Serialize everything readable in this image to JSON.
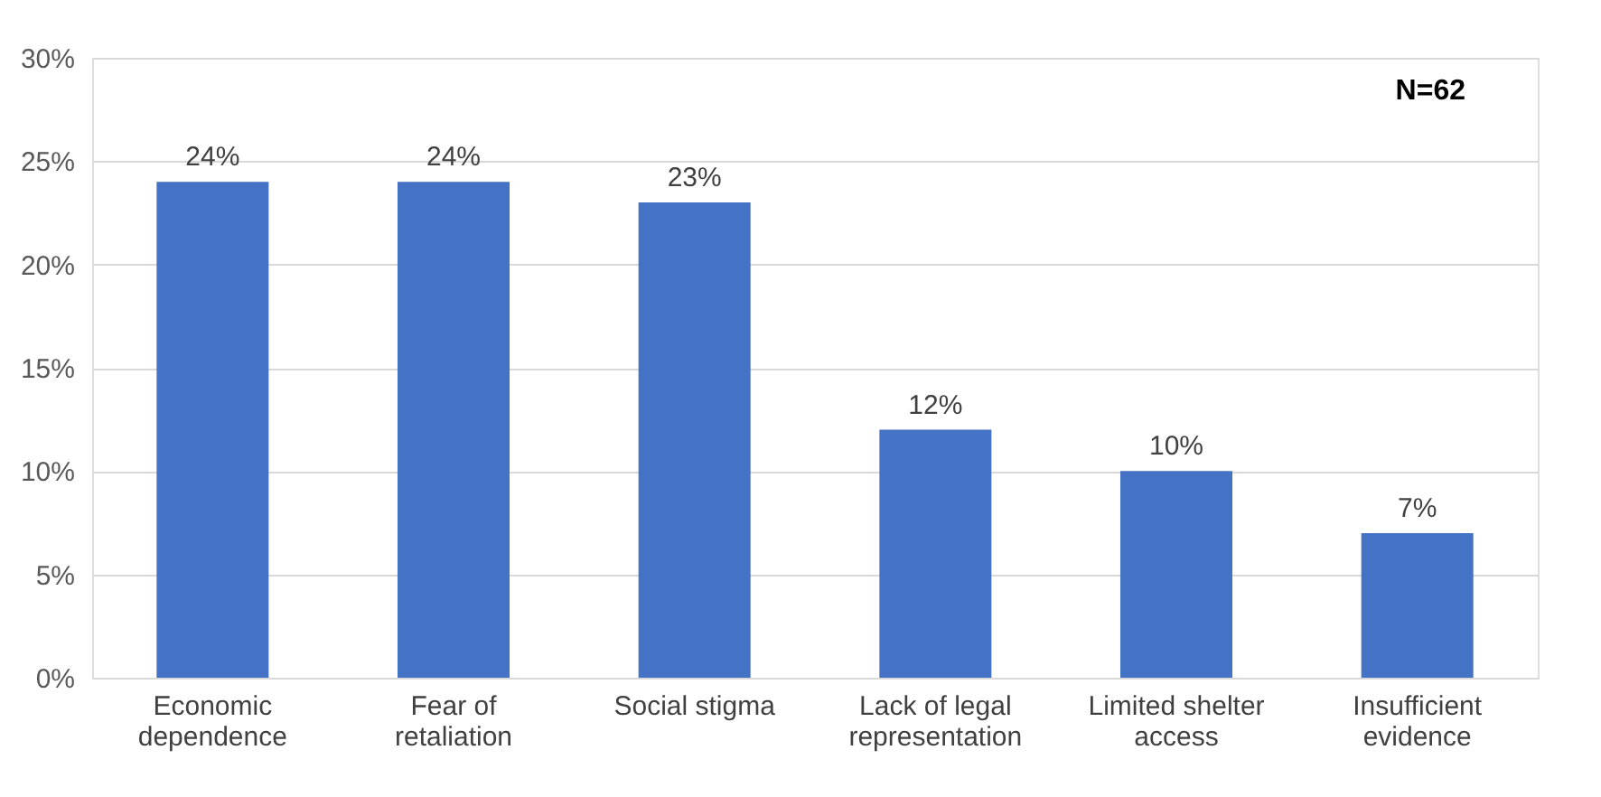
{
  "chart_data": {
    "type": "bar",
    "categories": [
      "Economic dependence",
      "Fear of retaliation",
      "Social stigma",
      "Lack of legal representation",
      "Limited shelter access",
      "Insufficient evidence"
    ],
    "values": [
      24,
      24,
      23,
      12,
      10,
      7
    ],
    "value_labels": [
      "24%",
      "24%",
      "23%",
      "12%",
      "10%",
      "7%"
    ],
    "color": "#4472c4",
    "ylim": [
      0,
      30
    ],
    "yticks": [
      {
        "value": 0,
        "label": "0%"
      },
      {
        "value": 5,
        "label": "5%"
      },
      {
        "value": 10,
        "label": "10%"
      },
      {
        "value": 15,
        "label": "15%"
      },
      {
        "value": 20,
        "label": "20%"
      },
      {
        "value": 25,
        "label": "25%"
      },
      {
        "value": 30,
        "label": "30%"
      }
    ],
    "grid": "y",
    "annotations": [
      "N=62"
    ]
  }
}
